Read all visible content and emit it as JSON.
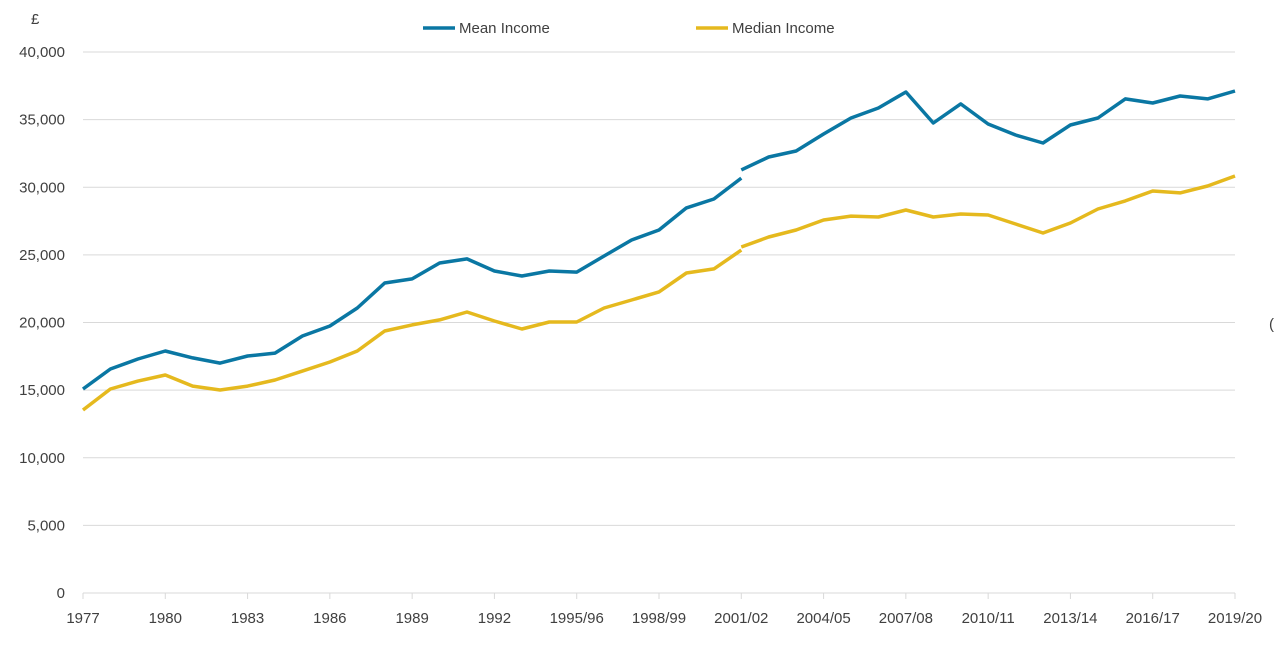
{
  "chart_data": {
    "type": "line",
    "y_unit_label": "£",
    "right_axis_label_fragment": "(",
    "ylim": [
      0,
      40000
    ],
    "yticks": [
      0,
      5000,
      10000,
      15000,
      20000,
      25000,
      30000,
      35000,
      40000
    ],
    "ytick_labels": [
      "0",
      "5,000",
      "10,000",
      "15,000",
      "20,000",
      "25,000",
      "30,000",
      "35,000",
      "40,000"
    ],
    "grid": "horizontal",
    "legend_placement": "top",
    "x": [
      "1977",
      "1978",
      "1979",
      "1980",
      "1981",
      "1982",
      "1983",
      "1984",
      "1985",
      "1986",
      "1987",
      "1988",
      "1989",
      "1990",
      "1991",
      "1992",
      "1993",
      "1994/95",
      "1995/96",
      "1996/97",
      "1997/98",
      "1998/99",
      "1999/00",
      "2000/01",
      "2001/02",
      "2002/03",
      "2003/04",
      "2004/05",
      "2005/06",
      "2006/07",
      "2007/08",
      "2008/09",
      "2009/10",
      "2010/11",
      "2011/12",
      "2012/13",
      "2013/14",
      "2014/15",
      "2015/16",
      "2016/17",
      "2017/18",
      "2018/19",
      "2019/20"
    ],
    "xtick_labels": [
      "1977",
      "1980",
      "1983",
      "1986",
      "1989",
      "1992",
      "1995/96",
      "1998/99",
      "2001/02",
      "2004/05",
      "2007/08",
      "2010/11",
      "2013/14",
      "2016/17",
      "2019/20"
    ],
    "series_break_at": "2001/02",
    "series": [
      {
        "name": "Mean Income",
        "color": "#0a77a3",
        "values_before_break": [
          15080,
          16560,
          17300,
          17890,
          17380,
          17000,
          17520,
          17740,
          19000,
          19740,
          21070,
          22920,
          23220,
          24400,
          24700,
          23810,
          23440,
          23810,
          23730,
          24920,
          26100,
          26840,
          28470,
          29130,
          30680
        ],
        "values_after_break": [
          31280,
          32240,
          32680,
          33940,
          35120,
          35860,
          37040,
          34750,
          36160,
          34680,
          33860,
          33270,
          34600,
          35120,
          36530,
          36230,
          36750,
          36530,
          37120
        ]
      },
      {
        "name": "Median Income",
        "color": "#e5b91e",
        "values_before_break": [
          13530,
          15080,
          15670,
          16120,
          15300,
          15010,
          15300,
          15750,
          16410,
          17080,
          17890,
          19370,
          19820,
          20190,
          20780,
          20110,
          19520,
          20040,
          20040,
          21070,
          21660,
          22260,
          23660,
          23960,
          25350
        ],
        "values_after_break": [
          25580,
          26320,
          26840,
          27580,
          27870,
          27800,
          28320,
          27800,
          28020,
          27950,
          27280,
          26620,
          27360,
          28390,
          28990,
          29720,
          29580,
          30090,
          30830
        ]
      }
    ]
  }
}
